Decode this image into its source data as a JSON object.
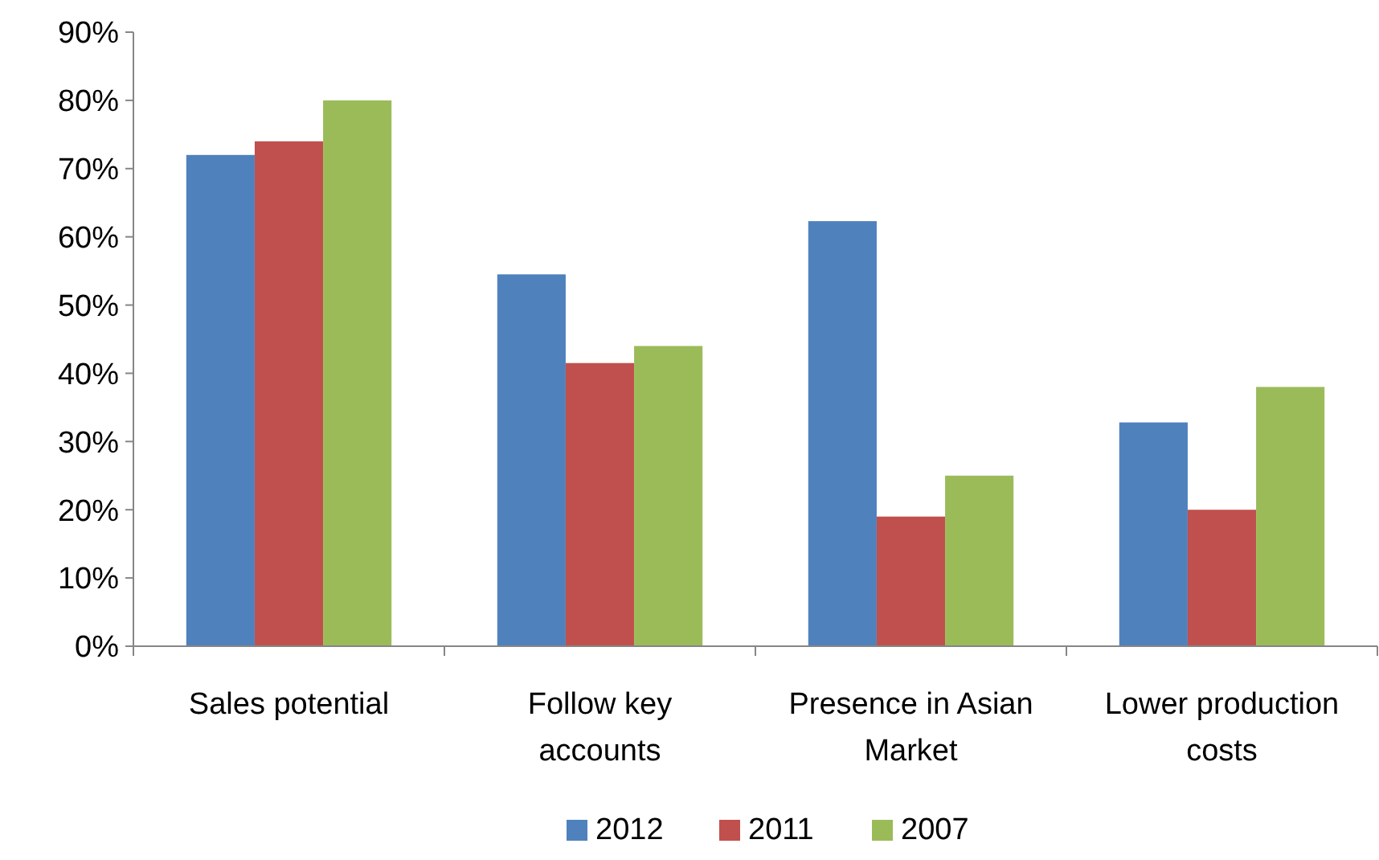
{
  "chart_data": {
    "type": "bar",
    "categories": [
      "Sales potential",
      "Follow key accounts",
      "Presence in Asian Market",
      "Lower production costs"
    ],
    "series": [
      {
        "name": "2012",
        "color": "#4f81bd",
        "values": [
          72,
          54.5,
          62.3,
          32.8
        ]
      },
      {
        "name": "2011",
        "color": "#c0504d",
        "values": [
          74,
          41.5,
          19,
          20
        ]
      },
      {
        "name": "2007",
        "color": "#9bbb59",
        "values": [
          80,
          44,
          25,
          38
        ]
      }
    ],
    "ylim": [
      0,
      90
    ],
    "yticks": [
      {
        "value": 0,
        "label": "0%"
      },
      {
        "value": 10,
        "label": "10%"
      },
      {
        "value": 20,
        "label": "20%"
      },
      {
        "value": 30,
        "label": "30%"
      },
      {
        "value": 40,
        "label": "40%"
      },
      {
        "value": 50,
        "label": "50%"
      },
      {
        "value": 60,
        "label": "60%"
      },
      {
        "value": 70,
        "label": "70%"
      },
      {
        "value": 80,
        "label": "80%"
      },
      {
        "value": 90,
        "label": "90%"
      }
    ],
    "grid": false,
    "legend": "bottom"
  }
}
